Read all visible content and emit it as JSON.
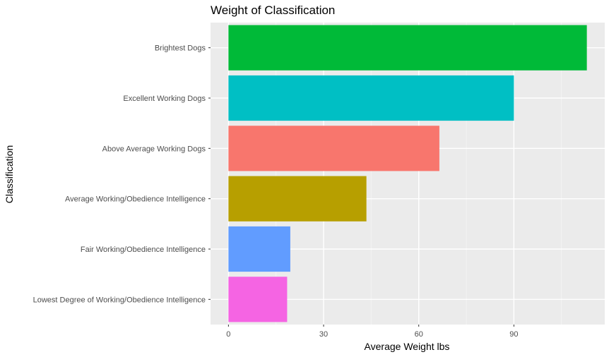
{
  "chart_data": {
    "type": "bar",
    "orientation": "horizontal",
    "title": "Weight of Classification",
    "xlabel": "Average Weight lbs",
    "ylabel": "Classification",
    "categories": [
      "Brightest Dogs",
      "Excellent Working Dogs",
      "Above Average Working Dogs",
      "Average Working/Obedience Intelligence",
      "Fair Working/Obedience Intelligence",
      "Lowest Degree of Working/Obedience Intelligence"
    ],
    "values": [
      113,
      90,
      66.5,
      43.5,
      19.5,
      18.5
    ],
    "colors": [
      "#00BA38",
      "#00BFC4",
      "#F8766D",
      "#B79F00",
      "#619CFF",
      "#F564E3"
    ],
    "xticks": [
      0,
      30,
      60,
      90
    ],
    "xlim": [
      -5.65,
      118.65
    ],
    "grid": true,
    "legend": "none"
  }
}
